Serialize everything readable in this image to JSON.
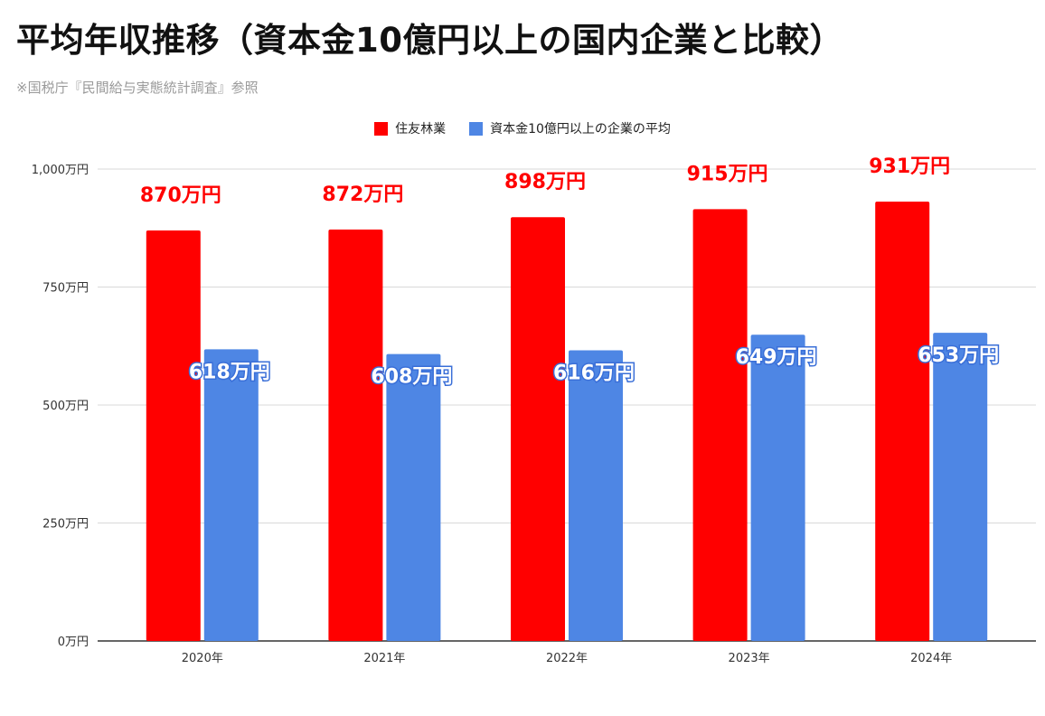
{
  "title": "平均年収推移（資本金10億円以上の国内企業と比較）",
  "subtitle": "※国税庁『民間給与実態統計調査』参照",
  "colors": {
    "series1": "#ff0000",
    "series2": "#4e86e4",
    "grid": "#d9d9d9",
    "axis": "#333333"
  },
  "chart_data": {
    "type": "bar",
    "categories": [
      "2020年",
      "2021年",
      "2022年",
      "2023年",
      "2024年"
    ],
    "series": [
      {
        "name": "住友林業",
        "values": [
          870,
          872,
          898,
          915,
          931
        ],
        "labels": [
          "870万円",
          "872万円",
          "898万円",
          "915万円",
          "931万円"
        ]
      },
      {
        "name": "資本金10億円以上の企業の平均",
        "values": [
          618,
          608,
          616,
          649,
          653
        ],
        "labels": [
          "618万円",
          "608万円",
          "616万円",
          "649万円",
          "653万円"
        ]
      }
    ],
    "ylim": [
      0,
      1000
    ],
    "yticks": [
      0,
      250,
      500,
      750,
      1000
    ],
    "ytick_labels": [
      "0万円",
      "250万円",
      "500万円",
      "750万円",
      "1,000万円"
    ],
    "grid": true,
    "legend": "top-center"
  }
}
